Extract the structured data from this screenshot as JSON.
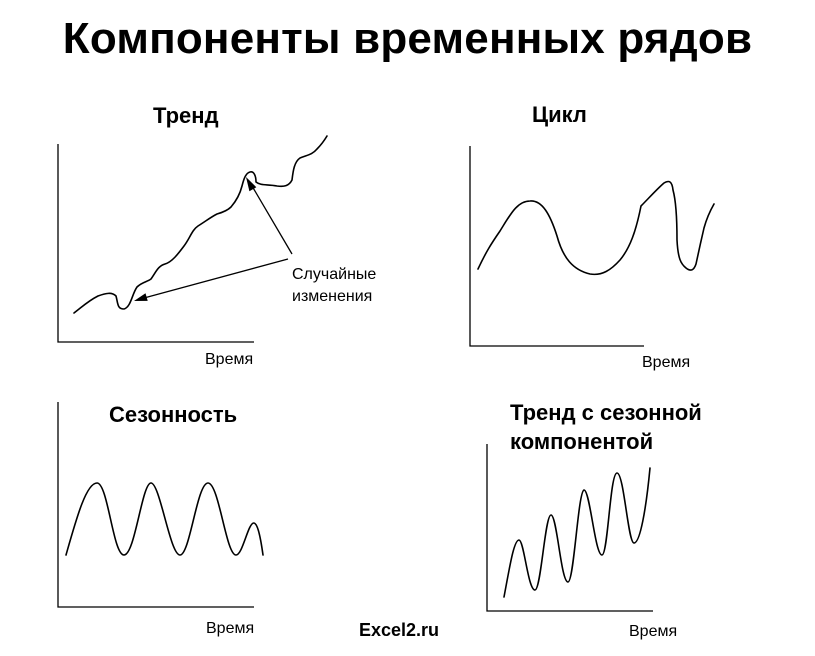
{
  "title": "Компоненты временных рядов",
  "credit": "Excel2.ru",
  "panels": [
    {
      "id": "trend",
      "title": "Тренд",
      "x_axis_label": "Время",
      "annotation": {
        "line1": "Случайные",
        "line2": "изменения"
      }
    },
    {
      "id": "cycle",
      "title": "Цикл",
      "x_axis_label": "Время"
    },
    {
      "id": "seasonality",
      "title": "Сезонность",
      "x_axis_label": "Время"
    },
    {
      "id": "trend-seasonal",
      "title_line1": "Тренд с сезонной",
      "title_line2": "компонентой",
      "x_axis_label": "Время"
    }
  ]
}
